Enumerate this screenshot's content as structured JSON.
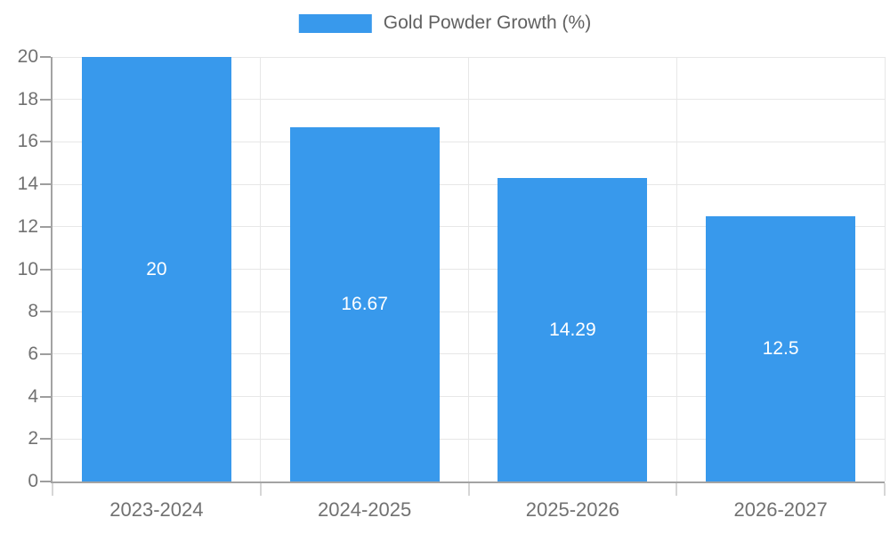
{
  "chart_data": {
    "type": "bar",
    "title": "Gold Powder Growth (%)",
    "series_name": "Gold Powder Growth (%)",
    "categories": [
      "2023-2024",
      "2024-2025",
      "2025-2026",
      "2026-2027"
    ],
    "values": [
      20,
      16.67,
      14.29,
      12.5
    ],
    "value_labels": [
      "20",
      "16.67",
      "14.29",
      "12.5"
    ],
    "xlabel": "",
    "ylabel": "",
    "ylim": [
      0,
      20
    ],
    "ytick_step": 2,
    "ytick_labels": [
      "0",
      "2",
      "4",
      "6",
      "8",
      "10",
      "12",
      "14",
      "16",
      "18",
      "20"
    ],
    "grid": true,
    "legend_position": "top"
  },
  "colors": {
    "bar": "#3899ec",
    "axis": "#a3a3a3",
    "gridline": "#e7e7e7",
    "tick_x": "#d6d6d6",
    "tick_y": "#9e9e9e",
    "tick_label": "#717171",
    "legend_label": "#616161",
    "value_label": "#ffffff",
    "background": "#ffffff"
  }
}
